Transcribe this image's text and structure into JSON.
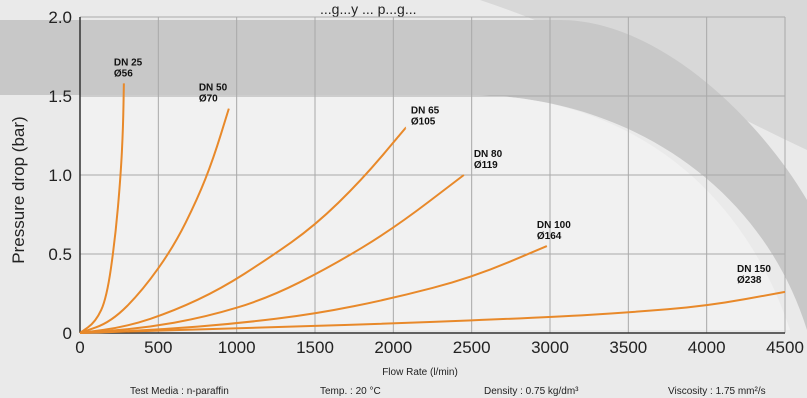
{
  "chart_data": {
    "type": "line",
    "title": "...g...y ... p...g...",
    "xlabel": "Flow Rate (l/min)",
    "ylabel": "Pressure drop (bar)",
    "xlim": [
      0,
      4500
    ],
    "ylim": [
      0,
      2.0
    ],
    "xticks": [
      "0",
      "500",
      "1000",
      "1500",
      "2000",
      "2500",
      "3000",
      "3500",
      "4000",
      "4500"
    ],
    "yticks": [
      "0",
      "0.5",
      "1.0",
      "1.5",
      "2.0"
    ],
    "grid": true,
    "line_color": "#e8892a",
    "series": [
      {
        "name": "DN 25",
        "sub": "Ø56",
        "x": [
          0,
          100,
          170,
          225,
          260,
          275,
          280
        ],
        "y": [
          0,
          0.07,
          0.22,
          0.6,
          1.0,
          1.3,
          1.58
        ]
      },
      {
        "name": "DN 50",
        "sub": "Ø70",
        "x": [
          0,
          200,
          400,
          600,
          750,
          850,
          950
        ],
        "y": [
          0,
          0.07,
          0.27,
          0.55,
          0.85,
          1.1,
          1.42
        ]
      },
      {
        "name": "DN 65",
        "sub": "Ø105",
        "x": [
          0,
          300,
          600,
          900,
          1200,
          1500,
          1800,
          2080
        ],
        "y": [
          0,
          0.04,
          0.14,
          0.28,
          0.47,
          0.68,
          0.97,
          1.3
        ]
      },
      {
        "name": "DN 80",
        "sub": "Ø119",
        "x": [
          0,
          400,
          800,
          1200,
          1600,
          2000,
          2450
        ],
        "y": [
          0,
          0.03,
          0.1,
          0.22,
          0.42,
          0.66,
          1.0
        ]
      },
      {
        "name": "DN 100",
        "sub": "Ø164",
        "x": [
          0,
          500,
          1000,
          1500,
          2000,
          2500,
          2980
        ],
        "y": [
          0,
          0.02,
          0.06,
          0.12,
          0.22,
          0.35,
          0.55
        ]
      },
      {
        "name": "DN 150",
        "sub": "Ø238",
        "x": [
          0,
          1000,
          2000,
          3000,
          3500,
          4000,
          4500
        ],
        "y": [
          0,
          0.03,
          0.06,
          0.1,
          0.13,
          0.17,
          0.26
        ]
      }
    ]
  },
  "footer": {
    "media": "Test Media : n-paraffin",
    "temp": "Temp. : 20 °C",
    "density": "Density : 0.75 kg/dm³",
    "viscosity": "Viscosity : 1.75 mm²/s"
  }
}
